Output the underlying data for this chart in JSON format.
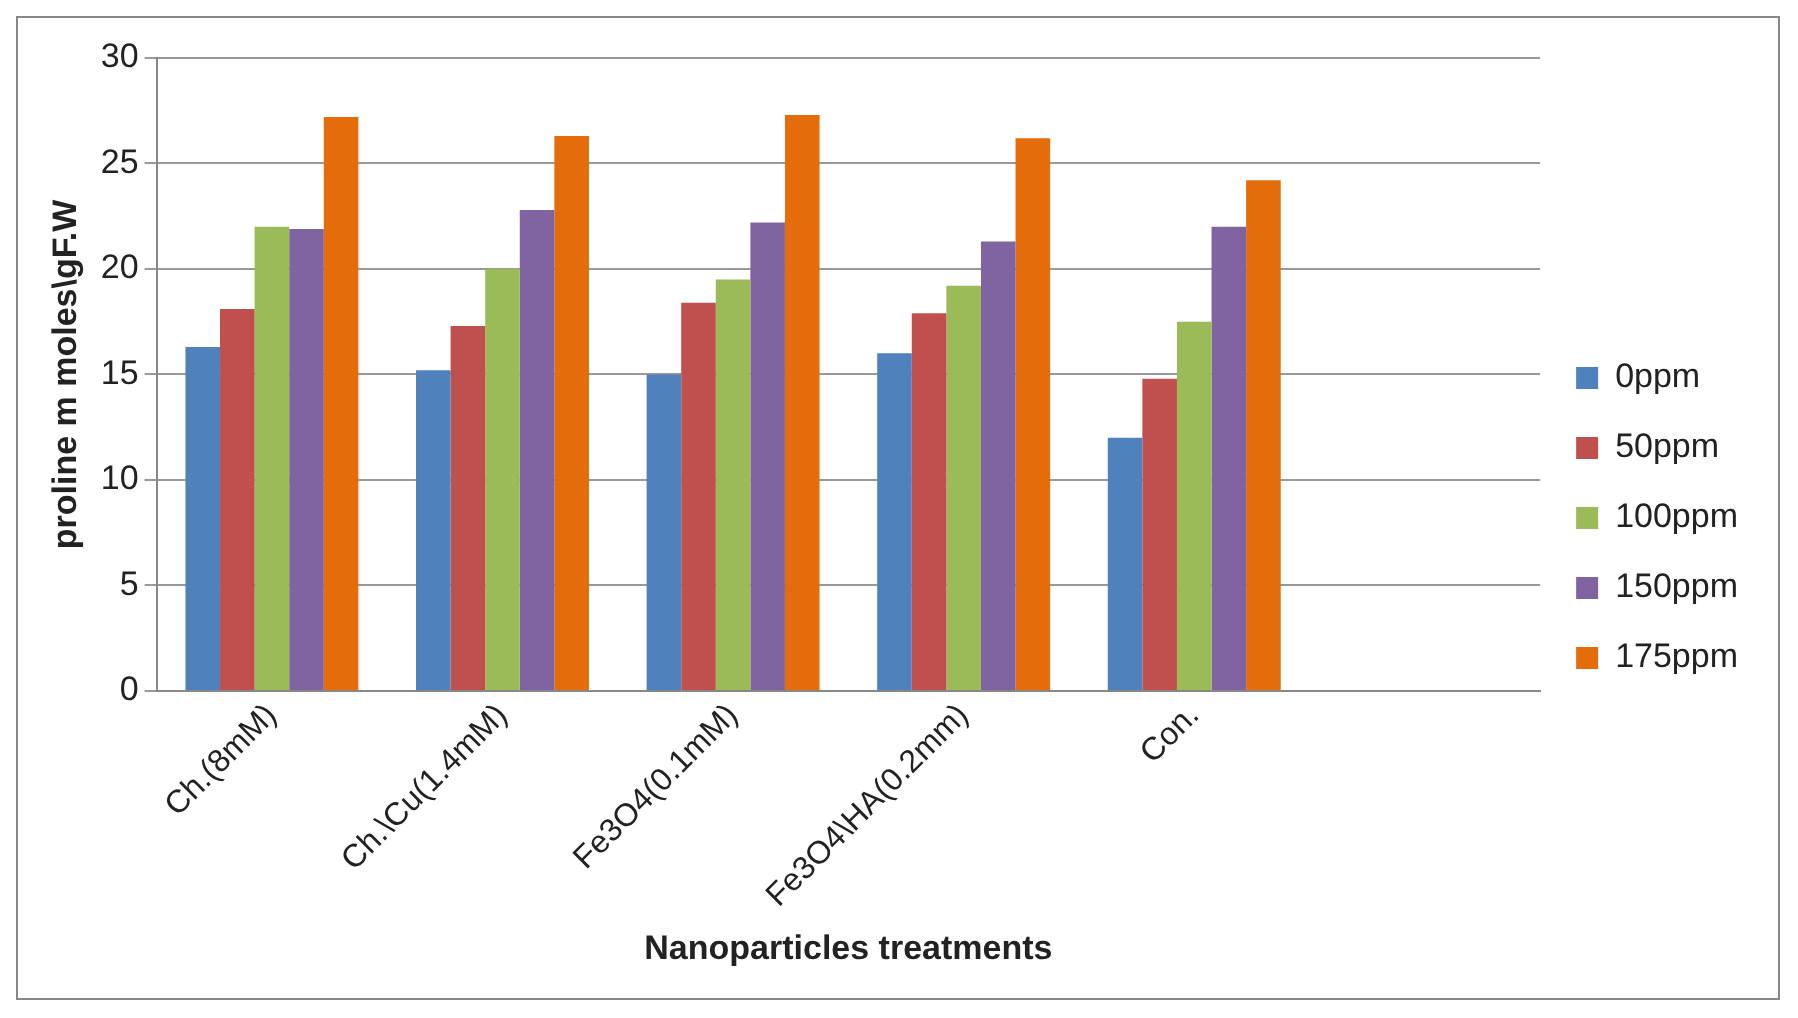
{
  "chart_data": {
    "type": "bar",
    "xlabel": "Nanoparticles treatments",
    "ylabel": "proline m moles\\gF.W",
    "categories": [
      "Ch.(8mM)",
      "Ch.\\Cu(1.4mM)",
      "Fe3O4(0.1mM)",
      "Fe3O4\\HA(0.2mm)",
      "Con.",
      null
    ],
    "series": [
      {
        "name": "0ppm",
        "color": "#4f81bd",
        "values": [
          16.3,
          15.2,
          15.0,
          16.0,
          12.0,
          null
        ]
      },
      {
        "name": "50ppm",
        "color": "#c0504d",
        "values": [
          18.1,
          17.3,
          18.4,
          17.9,
          14.8,
          null
        ]
      },
      {
        "name": "100ppm",
        "color": "#9bbb59",
        "values": [
          22.0,
          20.0,
          19.5,
          19.2,
          17.5,
          null
        ]
      },
      {
        "name": "150ppm",
        "color": "#8064a2",
        "values": [
          21.9,
          22.8,
          22.2,
          21.3,
          22.0,
          null
        ]
      },
      {
        "name": "175ppm",
        "color": "#e46c0a",
        "values": [
          27.2,
          26.3,
          27.3,
          26.2,
          24.2,
          null
        ]
      }
    ],
    "ylim": [
      0,
      30
    ],
    "yticks": [
      0,
      5,
      10,
      15,
      20,
      25,
      30
    ],
    "grid": "y",
    "legend": "right"
  }
}
